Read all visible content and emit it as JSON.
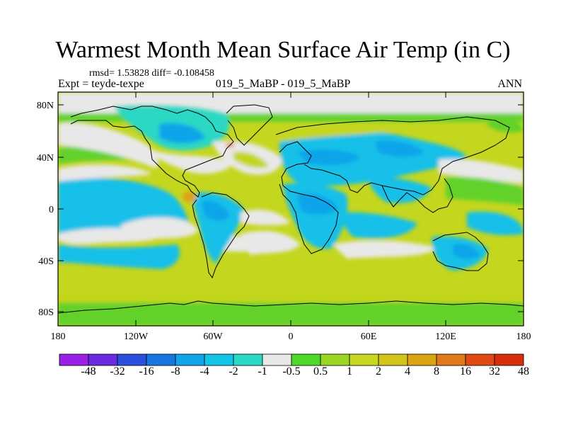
{
  "header": {
    "title": "Warmest Month Mean Surface Air Temp (in C)",
    "stats": "rmsd= 1.53828 diff= -0.108458",
    "expt": "Expt = teyde-texpe",
    "cases": "019_5_MaBP - 019_5_MaBP",
    "season": "ANN"
  },
  "map": {
    "lat_ticks": [
      "80N",
      "40N",
      "0",
      "40S",
      "80S"
    ],
    "lon_ticks": [
      "180",
      "120W",
      "60W",
      "0",
      "60E",
      "120E",
      "180"
    ]
  },
  "colorbar": {
    "colors": [
      "#9b20e6",
      "#6a2be0",
      "#2c4fde",
      "#1876e0",
      "#10a4ea",
      "#14c4e6",
      "#2ad8c6",
      "#e8e8e8",
      "#4ed82a",
      "#9bd626",
      "#c8d820",
      "#d2c418",
      "#dba414",
      "#e0781c",
      "#e04a14",
      "#d82e0c"
    ],
    "labels": [
      "-48",
      "-32",
      "-16",
      "-8",
      "-4",
      "-2",
      "-1",
      "-0.5",
      "0.5",
      "1",
      "2",
      "4",
      "8",
      "16",
      "32",
      "48"
    ]
  }
}
